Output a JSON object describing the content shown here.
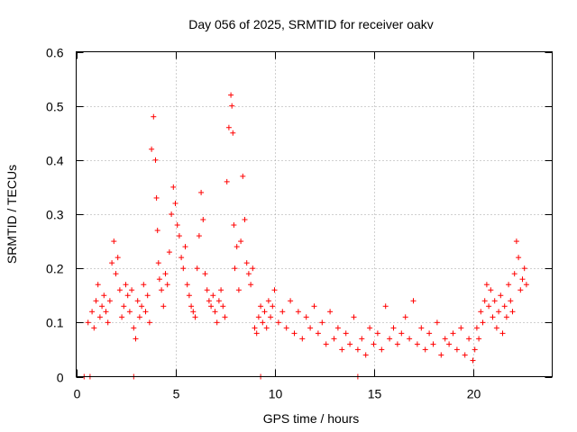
{
  "chart_data": {
    "type": "scatter",
    "title": "Day 056 of 2025, SRMTID for receiver oakv",
    "xlabel": "GPS time / hours",
    "ylabel": "SRMTID / TECUs",
    "xlim": [
      0,
      24
    ],
    "ylim": [
      0,
      0.6
    ],
    "xticks": [
      0,
      5,
      10,
      15,
      20
    ],
    "xtick_labels": [
      "0",
      "5",
      "10",
      "15",
      "20"
    ],
    "yticks": [
      0,
      0.1,
      0.2,
      0.3,
      0.4,
      0.5,
      0.6
    ],
    "ytick_labels": [
      "0",
      "0.1",
      "0.2",
      "0.3",
      "0.4",
      "0.5",
      "0.6"
    ],
    "grid": true,
    "marker": "plus",
    "color": "#ff0000",
    "series": [
      {
        "name": "SRMTID",
        "x": [
          0.4,
          0.6,
          0.7,
          0.8,
          0.9,
          1.0,
          1.1,
          1.2,
          1.3,
          1.4,
          1.5,
          1.6,
          1.7,
          1.8,
          1.9,
          2.0,
          2.1,
          2.2,
          2.3,
          2.4,
          2.5,
          2.6,
          2.7,
          2.8,
          2.9,
          3.0,
          3.1,
          3.2,
          3.3,
          3.4,
          3.5,
          3.6,
          3.7,
          3.8,
          3.9,
          4.0,
          4.05,
          4.1,
          4.15,
          4.2,
          4.3,
          4.4,
          4.5,
          4.6,
          4.7,
          4.8,
          4.9,
          5.0,
          5.1,
          5.2,
          5.3,
          5.4,
          5.5,
          5.6,
          5.7,
          5.8,
          5.9,
          6.0,
          6.1,
          6.2,
          6.3,
          6.4,
          6.5,
          6.6,
          6.7,
          6.8,
          6.9,
          7.0,
          7.1,
          7.2,
          7.3,
          7.4,
          7.5,
          7.6,
          7.7,
          7.8,
          7.85,
          7.9,
          7.95,
          8.0,
          8.1,
          8.2,
          8.3,
          8.4,
          8.5,
          8.6,
          8.7,
          8.8,
          8.9,
          9.0,
          9.1,
          9.2,
          9.3,
          9.4,
          9.5,
          9.6,
          9.7,
          9.8,
          9.9,
          10.0,
          10.2,
          10.4,
          10.6,
          10.8,
          11.0,
          11.2,
          11.4,
          11.6,
          11.8,
          12.0,
          12.2,
          12.4,
          12.6,
          12.8,
          13.0,
          13.2,
          13.4,
          13.6,
          13.8,
          14.0,
          14.2,
          14.4,
          14.6,
          14.8,
          15.0,
          15.2,
          15.4,
          15.6,
          15.8,
          16.0,
          16.2,
          16.4,
          16.6,
          16.8,
          17.0,
          17.2,
          17.4,
          17.6,
          17.8,
          18.0,
          18.2,
          18.4,
          18.6,
          18.8,
          19.0,
          19.2,
          19.4,
          19.6,
          19.8,
          20.0,
          20.1,
          20.2,
          20.3,
          20.4,
          20.5,
          20.6,
          20.7,
          20.8,
          20.9,
          21.0,
          21.1,
          21.2,
          21.3,
          21.4,
          21.5,
          21.6,
          21.7,
          21.8,
          21.9,
          22.0,
          22.1,
          22.2,
          22.3,
          22.4,
          22.5,
          22.6,
          22.7,
          2.9,
          9.3,
          14.2
        ],
        "values": [
          0.0,
          0.1,
          0.0,
          0.12,
          0.09,
          0.14,
          0.17,
          0.11,
          0.13,
          0.15,
          0.12,
          0.1,
          0.14,
          0.21,
          0.25,
          0.19,
          0.22,
          0.16,
          0.11,
          0.13,
          0.17,
          0.15,
          0.12,
          0.16,
          0.09,
          0.07,
          0.14,
          0.11,
          0.13,
          0.17,
          0.12,
          0.15,
          0.1,
          0.42,
          0.48,
          0.4,
          0.33,
          0.27,
          0.21,
          0.18,
          0.16,
          0.13,
          0.19,
          0.17,
          0.23,
          0.3,
          0.35,
          0.32,
          0.28,
          0.26,
          0.22,
          0.2,
          0.24,
          0.17,
          0.15,
          0.13,
          0.12,
          0.11,
          0.2,
          0.26,
          0.34,
          0.29,
          0.19,
          0.16,
          0.14,
          0.13,
          0.15,
          0.12,
          0.1,
          0.14,
          0.16,
          0.13,
          0.11,
          0.36,
          0.46,
          0.52,
          0.5,
          0.45,
          0.28,
          0.2,
          0.24,
          0.16,
          0.25,
          0.37,
          0.29,
          0.21,
          0.19,
          0.17,
          0.2,
          0.09,
          0.08,
          0.11,
          0.13,
          0.1,
          0.12,
          0.09,
          0.14,
          0.11,
          0.13,
          0.16,
          0.1,
          0.12,
          0.09,
          0.14,
          0.08,
          0.12,
          0.07,
          0.11,
          0.09,
          0.13,
          0.08,
          0.1,
          0.06,
          0.12,
          0.07,
          0.09,
          0.05,
          0.08,
          0.06,
          0.11,
          0.05,
          0.07,
          0.04,
          0.09,
          0.06,
          0.08,
          0.05,
          0.13,
          0.07,
          0.09,
          0.06,
          0.08,
          0.11,
          0.07,
          0.14,
          0.06,
          0.09,
          0.05,
          0.08,
          0.06,
          0.1,
          0.04,
          0.07,
          0.06,
          0.08,
          0.05,
          0.09,
          0.04,
          0.07,
          0.03,
          0.05,
          0.09,
          0.07,
          0.12,
          0.1,
          0.14,
          0.17,
          0.13,
          0.16,
          0.11,
          0.14,
          0.09,
          0.12,
          0.15,
          0.08,
          0.13,
          0.11,
          0.17,
          0.14,
          0.12,
          0.19,
          0.25,
          0.22,
          0.16,
          0.18,
          0.2,
          0.17,
          0.0,
          0.0,
          0.0
        ]
      }
    ]
  }
}
